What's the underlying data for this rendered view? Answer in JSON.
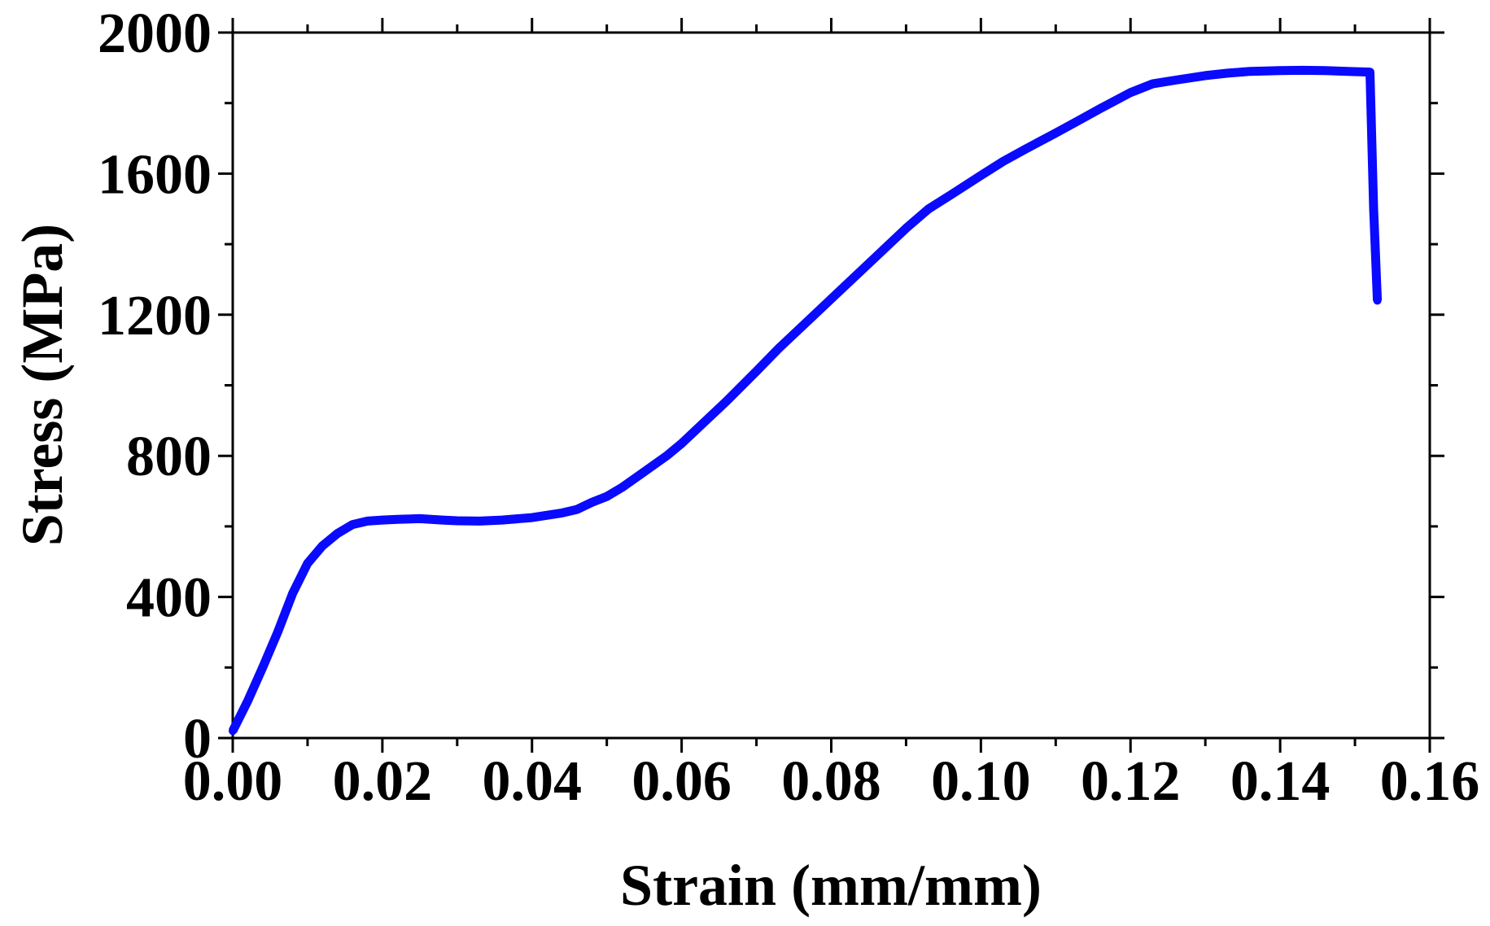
{
  "chart_data": {
    "type": "line",
    "title": "",
    "xlabel": "Strain (mm/mm)",
    "ylabel": "Stress (MPa)",
    "xlim": [
      0,
      0.16
    ],
    "ylim": [
      0,
      2000
    ],
    "x_ticks": [
      "0.00",
      "0.02",
      "0.04",
      "0.06",
      "0.08",
      "0.10",
      "0.12",
      "0.14",
      "0.16"
    ],
    "y_ticks": [
      "0",
      "400",
      "800",
      "1200",
      "1600",
      "2000"
    ],
    "grid": false,
    "legend": "none",
    "series": [
      {
        "color": "#0a0aff",
        "x": [
          0.0,
          0.002,
          0.004,
          0.006,
          0.008,
          0.01,
          0.012,
          0.014,
          0.016,
          0.018,
          0.02,
          0.022,
          0.025,
          0.028,
          0.03,
          0.033,
          0.036,
          0.04,
          0.044,
          0.046,
          0.048,
          0.05,
          0.052,
          0.055,
          0.058,
          0.06,
          0.063,
          0.066,
          0.07,
          0.073,
          0.076,
          0.08,
          0.083,
          0.086,
          0.09,
          0.093,
          0.096,
          0.1,
          0.103,
          0.106,
          0.11,
          0.113,
          0.116,
          0.12,
          0.123,
          0.126,
          0.13,
          0.133,
          0.136,
          0.14,
          0.143,
          0.146,
          0.149,
          0.152,
          0.1525,
          0.153
        ],
        "y": [
          20,
          105,
          200,
          300,
          410,
          495,
          545,
          580,
          605,
          615,
          618,
          620,
          622,
          618,
          616,
          615,
          618,
          625,
          638,
          648,
          668,
          685,
          710,
          755,
          800,
          835,
          895,
          955,
          1040,
          1105,
          1165,
          1245,
          1305,
          1365,
          1445,
          1500,
          1540,
          1595,
          1635,
          1670,
          1715,
          1750,
          1785,
          1830,
          1855,
          1865,
          1878,
          1885,
          1890,
          1892,
          1893,
          1892,
          1890,
          1888,
          1500,
          1240
        ]
      }
    ]
  }
}
